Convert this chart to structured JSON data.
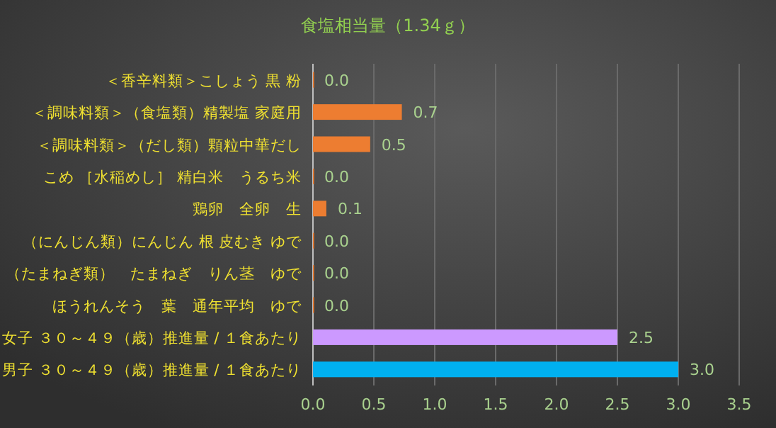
{
  "chart_data": {
    "type": "bar",
    "orientation": "horizontal",
    "title": "食塩相当量（1.34ｇ）",
    "categories": [
      "＜香辛料類＞こしょう 黒 粉",
      "＜調味料類＞（食塩類）精製塩 家庭用",
      "＜調味料類＞（だし類）顆粒中華だし",
      "こめ ［水稲めし］ 精白米　うるち米",
      "鶏卵　全卵　生",
      "（にんじん類）にんじん 根 皮むき ゆで",
      "（たまねぎ類）　たまねぎ　りん茎　ゆで",
      "ほうれんそう　葉　通年平均　ゆで",
      "女子 ３０～４９（歳）推進量 / １食あたり",
      "男子 ３０～４９（歳）推進量 / １食あたり"
    ],
    "values": [
      0.0,
      0.73,
      0.47,
      0.0,
      0.11,
      0.0,
      0.0,
      0.0,
      2.5,
      3.0
    ],
    "value_labels": [
      "0.0",
      "0.7",
      "0.5",
      "0.0",
      "0.1",
      "0.0",
      "0.0",
      "0.0",
      "2.5",
      "3.0"
    ],
    "colors": [
      "#ed7d31",
      "#ed7d31",
      "#ed7d31",
      "#ed7d31",
      "#ed7d31",
      "#ed7d31",
      "#ed7d31",
      "#ed7d31",
      "#cc99ff",
      "#00b0f0"
    ],
    "xlim": [
      0,
      3.5
    ],
    "xticks": [
      {
        "value": 0,
        "label": "0.0"
      },
      {
        "value": 0.5,
        "label": "0.5"
      },
      {
        "value": 1,
        "label": "1.0"
      },
      {
        "value": 1.5,
        "label": "1.5"
      },
      {
        "value": 2,
        "label": "2.0"
      },
      {
        "value": 2.5,
        "label": "2.5"
      },
      {
        "value": 3,
        "label": "3.0"
      },
      {
        "value": 3.5,
        "label": "3.5"
      }
    ],
    "grid": "x"
  }
}
